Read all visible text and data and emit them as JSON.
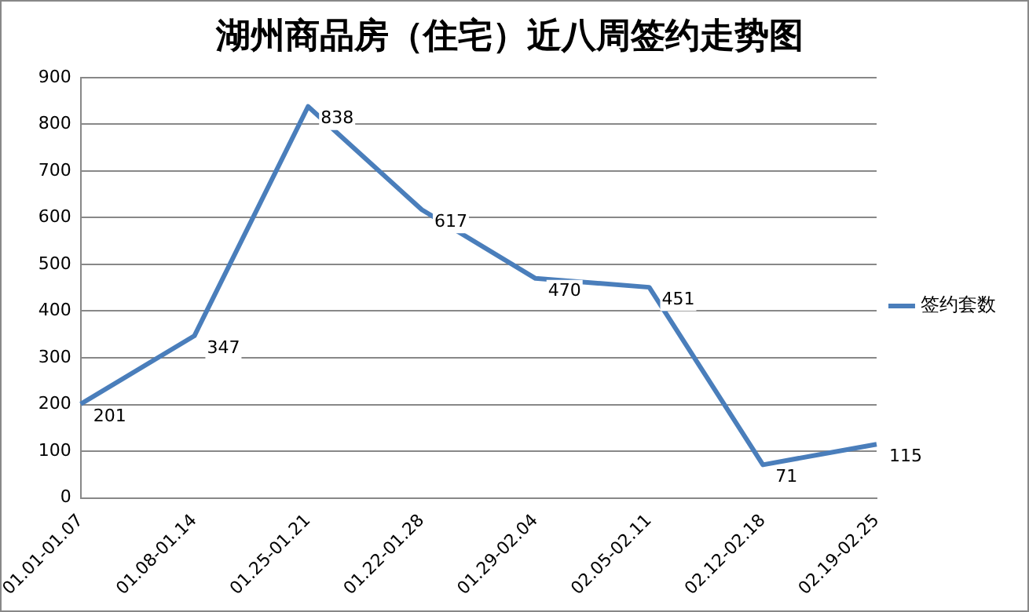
{
  "chart_data": {
    "type": "line",
    "title": "湖州商品房（住宅）近八周签约走势图",
    "categories": [
      "01.01-01.07",
      "01.08-01.14",
      "01.25-01.21",
      "01.22-01.28",
      "01.29-02.04",
      "02.05-02.11",
      "02.12-02.18",
      "02.19-02.25"
    ],
    "series": [
      {
        "name": "签约套数",
        "color": "#4a7ebb",
        "values": [
          201,
          347,
          838,
          617,
          470,
          451,
          71,
          115
        ]
      }
    ],
    "ylim": [
      0,
      900
    ],
    "yticks": [
      0,
      100,
      200,
      300,
      400,
      500,
      600,
      700,
      800,
      900
    ],
    "grid": "y",
    "legend": "right",
    "marker": "none",
    "line_style": "solid",
    "data_labels": true
  }
}
